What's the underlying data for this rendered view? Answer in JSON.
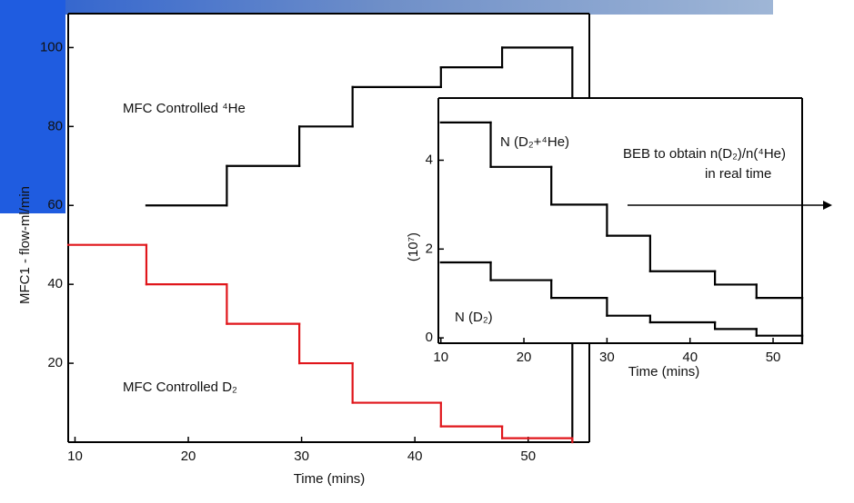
{
  "chart_data": [
    {
      "type": "step",
      "xlabel": "Time (mins)",
      "ylabel": "MFC1 - flow-ml/min",
      "xlim": [
        9.4,
        55.4
      ],
      "ylim": [
        0,
        108.6
      ],
      "xticks": [
        10,
        20,
        30,
        40,
        50
      ],
      "yticks": [
        20,
        40,
        60,
        80,
        100
      ],
      "series": [
        {
          "name": "MFC Controlled ⁴He",
          "color": "#000000",
          "x": [
            16.3,
            23.4,
            29.8,
            34.5,
            42.3,
            47.7,
            53.9
          ],
          "values": [
            60,
            70,
            80,
            90,
            95,
            100,
            100
          ]
        },
        {
          "name": "MFC Controlled D₂",
          "color": "#e0161b",
          "x": [
            9.4,
            16.3,
            23.4,
            29.8,
            34.5,
            42.3,
            47.7,
            53.9
          ],
          "values": [
            50,
            40,
            30,
            20,
            10,
            4,
            1,
            1
          ]
        }
      ]
    },
    {
      "type": "step",
      "xlabel": "Time (mins)",
      "ylabel": "(10⁷)",
      "xlim": [
        9.7,
        53.5
      ],
      "ylim": [
        -0.12,
        5.4
      ],
      "xticks": [
        10,
        20,
        30,
        40,
        50
      ],
      "yticks": [
        0,
        2,
        4
      ],
      "series": [
        {
          "name": "N (D₂+⁴He)",
          "color": "#000000",
          "x": [
            10,
            16,
            23.3,
            30,
            35.2,
            43,
            48,
            53.5
          ],
          "values": [
            4.85,
            3.85,
            3.0,
            2.3,
            1.5,
            1.2,
            0.9,
            0.9
          ]
        },
        {
          "name": "N (D₂)",
          "color": "#000000",
          "x": [
            10,
            16,
            23.3,
            30,
            35.2,
            43,
            48,
            53.5
          ],
          "values": [
            1.7,
            1.3,
            0.9,
            0.5,
            0.35,
            0.2,
            0.05,
            0.05
          ]
        }
      ],
      "annotations": [
        "BEB to obtain n(D₂)/n(⁴He)",
        "in real time"
      ]
    }
  ]
}
